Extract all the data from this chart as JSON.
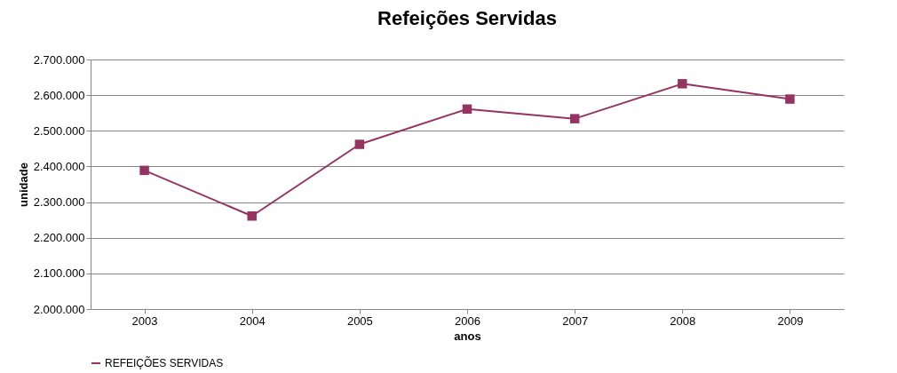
{
  "chart_data": {
    "type": "line",
    "title": "Refeições Servidas",
    "xlabel": "anos",
    "ylabel": "unidade",
    "categories": [
      "2003",
      "2004",
      "2005",
      "2006",
      "2007",
      "2008",
      "2009"
    ],
    "series": [
      {
        "name": "REFEIÇÕES SERVIDAS",
        "color": "#953461",
        "values": [
          2389000,
          2261000,
          2462000,
          2561000,
          2534000,
          2632000,
          2589000
        ]
      }
    ],
    "ylim": [
      2000000,
      2700000
    ],
    "yticks": [
      {
        "value": 2000000,
        "label": "2.000.000"
      },
      {
        "value": 2100000,
        "label": "2.100.000"
      },
      {
        "value": 2200000,
        "label": "2.200.000"
      },
      {
        "value": 2300000,
        "label": "2.300.000"
      },
      {
        "value": 2400000,
        "label": "2.400.000"
      },
      {
        "value": 2500000,
        "label": "2.500.000"
      },
      {
        "value": 2600000,
        "label": "2.600.000"
      },
      {
        "value": 2700000,
        "label": "2.700.000"
      }
    ],
    "grid": "y",
    "legend": "bottom",
    "marker": "square",
    "line_style": "solid"
  }
}
